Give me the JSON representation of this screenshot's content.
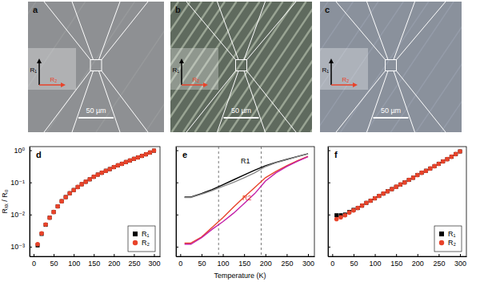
{
  "images": [
    {
      "label": "a",
      "scale_bar": "50 µm",
      "arrows": [
        "R₁",
        "R₂"
      ]
    },
    {
      "label": "b",
      "scale_bar": "50 µm",
      "arrows": [
        "R₁",
        "R₂"
      ]
    },
    {
      "label": "c",
      "scale_bar": "50 µm",
      "arrows": [
        "R₁",
        "R₂"
      ]
    }
  ],
  "chart_data": [
    {
      "type": "scatter",
      "title": "d",
      "ylabel": "Rₓₓ / R₀",
      "log": "y",
      "legend": "lower right",
      "xlim": [
        -10,
        315
      ],
      "xticks": [
        0,
        50,
        100,
        150,
        200,
        250,
        300
      ],
      "ylim": [
        0.0005,
        1.3
      ],
      "yticks": [
        {
          "value": 0.001,
          "label": "10⁻³"
        },
        {
          "value": 0.01,
          "label": "10⁻²"
        },
        {
          "value": 0.1,
          "label": "10⁻¹"
        },
        {
          "value": 1,
          "label": "10⁰"
        }
      ],
      "series": [
        {
          "name": "R₁",
          "color": "#000000",
          "marker": "square",
          "x": [
            10,
            20,
            30,
            40,
            50,
            60,
            70,
            80,
            90,
            100,
            110,
            120,
            130,
            140,
            150,
            160,
            170,
            180,
            190,
            200,
            210,
            220,
            230,
            240,
            250,
            260,
            270,
            280,
            290,
            300
          ],
          "values": [
            0.0011,
            0.0025,
            0.0048,
            0.008,
            0.012,
            0.018,
            0.026,
            0.035,
            0.046,
            0.058,
            0.072,
            0.088,
            0.105,
            0.125,
            0.15,
            0.175,
            0.2,
            0.23,
            0.26,
            0.3,
            0.34,
            0.38,
            0.43,
            0.48,
            0.54,
            0.6,
            0.67,
            0.75,
            0.85,
            0.97
          ]
        },
        {
          "name": "R₂",
          "color": "#e8432a",
          "marker": "circle",
          "x": [
            10,
            20,
            30,
            40,
            50,
            60,
            70,
            80,
            90,
            100,
            110,
            120,
            130,
            140,
            150,
            160,
            170,
            180,
            190,
            200,
            210,
            220,
            230,
            240,
            250,
            260,
            270,
            280,
            290,
            300
          ],
          "values": [
            0.0012,
            0.0026,
            0.0049,
            0.008,
            0.012,
            0.018,
            0.026,
            0.035,
            0.046,
            0.058,
            0.072,
            0.088,
            0.105,
            0.125,
            0.15,
            0.175,
            0.2,
            0.23,
            0.26,
            0.3,
            0.34,
            0.38,
            0.43,
            0.48,
            0.54,
            0.6,
            0.67,
            0.75,
            0.85,
            0.97
          ]
        }
      ]
    },
    {
      "type": "line",
      "title": "e",
      "xlabel": "Temperature (K)",
      "log": "y",
      "tick_labels": "x",
      "xlim": [
        -10,
        315
      ],
      "xticks": [
        0,
        50,
        100,
        150,
        200,
        250,
        300
      ],
      "ylim": [
        0.0005,
        1.3
      ],
      "yticks": [
        0.001,
        0.01,
        0.1,
        1
      ],
      "vlines": [
        90,
        190
      ],
      "series": [
        {
          "name": "R1",
          "color": "#000000",
          "x": [
            10,
            25,
            50,
            75,
            100,
            125,
            150,
            175,
            200,
            225,
            250,
            275,
            300
          ],
          "values": [
            0.035,
            0.035,
            0.045,
            0.06,
            0.085,
            0.12,
            0.17,
            0.24,
            0.33,
            0.42,
            0.52,
            0.64,
            0.78
          ]
        },
        {
          "color": "#8a8a8a",
          "x": [
            10,
            25,
            50,
            75,
            100,
            125,
            150,
            175,
            200,
            225,
            250,
            275,
            300
          ],
          "values": [
            0.034,
            0.034,
            0.043,
            0.056,
            0.075,
            0.1,
            0.14,
            0.2,
            0.31,
            0.41,
            0.51,
            0.63,
            0.77
          ]
        },
        {
          "name": "R2",
          "color": "#e8432a",
          "x": [
            10,
            25,
            50,
            75,
            100,
            125,
            150,
            175,
            200,
            225,
            250,
            275,
            300
          ],
          "values": [
            0.0013,
            0.0013,
            0.002,
            0.004,
            0.008,
            0.017,
            0.035,
            0.07,
            0.14,
            0.22,
            0.33,
            0.47,
            0.65
          ]
        },
        {
          "color": "#c21fa8",
          "x": [
            10,
            25,
            50,
            75,
            100,
            125,
            150,
            175,
            200,
            225,
            250,
            275,
            300
          ],
          "values": [
            0.0012,
            0.0012,
            0.0019,
            0.0035,
            0.006,
            0.011,
            0.022,
            0.045,
            0.11,
            0.2,
            0.31,
            0.45,
            0.63
          ]
        }
      ]
    },
    {
      "type": "scatter",
      "title": "f",
      "log": "y",
      "legend": "lower right",
      "tick_labels": "x",
      "xlim": [
        -10,
        315
      ],
      "xticks": [
        0,
        50,
        100,
        150,
        200,
        250,
        300
      ],
      "ylim": [
        0.0005,
        1.3
      ],
      "yticks": [
        0.001,
        0.01,
        0.1,
        1
      ],
      "series": [
        {
          "name": "R₁",
          "color": "#000000",
          "marker": "square",
          "x": [
            10,
            20,
            30,
            40,
            50,
            60,
            70,
            80,
            90,
            100,
            110,
            120,
            130,
            140,
            150,
            160,
            170,
            180,
            190,
            200,
            210,
            220,
            230,
            240,
            250,
            260,
            270,
            280,
            290,
            300
          ],
          "values": [
            0.0095,
            0.0095,
            0.01,
            0.012,
            0.014,
            0.016,
            0.019,
            0.023,
            0.027,
            0.032,
            0.038,
            0.045,
            0.053,
            0.062,
            0.073,
            0.086,
            0.1,
            0.12,
            0.14,
            0.17,
            0.2,
            0.23,
            0.27,
            0.32,
            0.38,
            0.45,
            0.53,
            0.63,
            0.76,
            0.92
          ]
        },
        {
          "name": "R₂",
          "color": "#e8432a",
          "marker": "circle",
          "x": [
            10,
            20,
            30,
            40,
            50,
            60,
            70,
            80,
            90,
            100,
            110,
            120,
            130,
            140,
            150,
            160,
            170,
            180,
            190,
            200,
            210,
            220,
            230,
            240,
            250,
            260,
            270,
            280,
            290,
            300
          ],
          "values": [
            0.0072,
            0.0082,
            0.0095,
            0.0115,
            0.0135,
            0.016,
            0.019,
            0.023,
            0.027,
            0.032,
            0.038,
            0.045,
            0.053,
            0.062,
            0.073,
            0.086,
            0.1,
            0.12,
            0.14,
            0.17,
            0.2,
            0.23,
            0.27,
            0.32,
            0.38,
            0.45,
            0.53,
            0.63,
            0.76,
            0.92
          ]
        }
      ]
    }
  ]
}
